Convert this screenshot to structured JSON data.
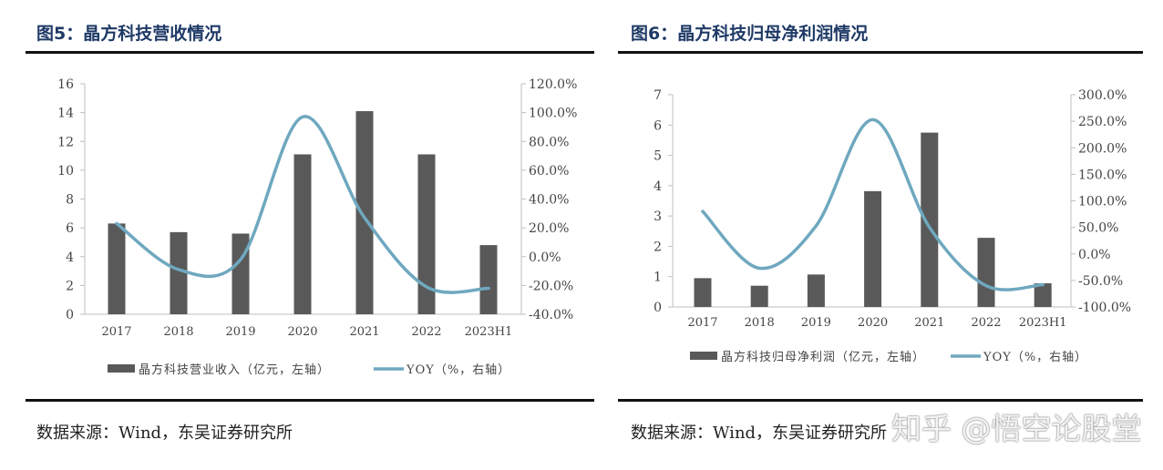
{
  "chart_data": [
    {
      "type": "bar+line",
      "title": "图5：晶方科技营收情况",
      "categories": [
        "2017",
        "2018",
        "2019",
        "2020",
        "2021",
        "2022",
        "2023H1"
      ],
      "series": [
        {
          "name": "晶方科技营业收入（亿元，左轴）",
          "type": "bar",
          "axis": "left",
          "values": [
            6.3,
            5.7,
            5.6,
            11.1,
            14.1,
            11.1,
            4.8
          ]
        },
        {
          "name": "YOY（%，右轴）",
          "type": "line",
          "axis": "right",
          "values": [
            23.0,
            -9.0,
            -2.0,
            97.0,
            27.0,
            -21.0,
            -22.0
          ]
        }
      ],
      "left_axis": {
        "ylim": [
          0,
          16
        ],
        "ticks": [
          "0",
          "2",
          "4",
          "6",
          "8",
          "10",
          "12",
          "14",
          "16"
        ]
      },
      "right_axis": {
        "ylim": [
          -40,
          120
        ],
        "ticks": [
          "-40.0%",
          "-20.0%",
          "0.0%",
          "20.0%",
          "40.0%",
          "60.0%",
          "80.0%",
          "100.0%",
          "120.0%"
        ]
      },
      "legend": "bottom",
      "grid": false,
      "source": "数据来源：Wind，东吴证券研究所"
    },
    {
      "type": "bar+line",
      "title": "图6：晶方科技归母净利润情况",
      "categories": [
        "2017",
        "2018",
        "2019",
        "2020",
        "2021",
        "2022",
        "2023H1"
      ],
      "series": [
        {
          "name": "晶方科技归母净利润（亿元，左轴）",
          "type": "bar",
          "axis": "left",
          "values": [
            0.95,
            0.7,
            1.07,
            3.82,
            5.75,
            2.28,
            0.78
          ]
        },
        {
          "name": "YOY（%，右轴）",
          "type": "line",
          "axis": "right",
          "values": [
            80.0,
            -27.0,
            53.0,
            253.0,
            50.0,
            -60.0,
            -58.0
          ]
        }
      ],
      "left_axis": {
        "ylim": [
          0,
          7
        ],
        "ticks": [
          "0",
          "1",
          "2",
          "3",
          "4",
          "5",
          "6",
          "7"
        ]
      },
      "right_axis": {
        "ylim": [
          -100,
          300
        ],
        "ticks": [
          "-100.0%",
          "-50.0%",
          "0.0%",
          "50.0%",
          "100.0%",
          "150.0%",
          "200.0%",
          "250.0%",
          "300.0%"
        ]
      },
      "legend": "bottom",
      "grid": false,
      "source": "数据来源：Wind，东吴证券研究所"
    }
  ],
  "colors": {
    "bar": "#595959",
    "line": "#6fa8bf",
    "axis": "#bfbfbf",
    "title": "#1f3a66"
  },
  "watermark": "知乎 @悟空论股堂"
}
